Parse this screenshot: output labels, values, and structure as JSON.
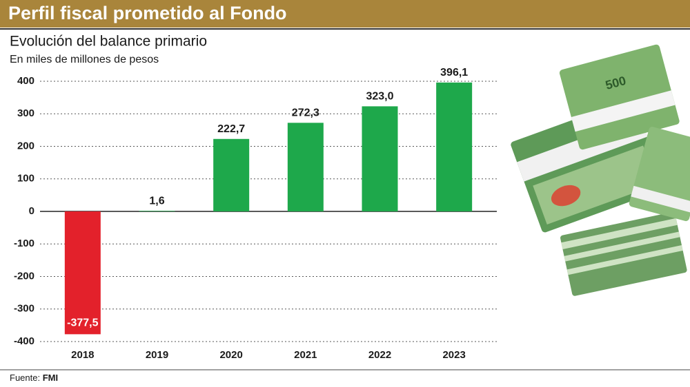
{
  "chart_data": {
    "type": "bar",
    "title": "Perfil fiscal prometido al Fondo",
    "subtitle": "Evolución del balance primario",
    "y_label": "En miles de millones de pesos",
    "categories": [
      "2018",
      "2019",
      "2020",
      "2021",
      "2022",
      "2023"
    ],
    "values": [
      -377.5,
      1.6,
      222.7,
      272.3,
      323.0,
      396.1
    ],
    "value_labels": [
      "-377,5",
      "1,6",
      "222,7",
      "272,3",
      "323,0",
      "396,1"
    ],
    "colors": [
      "#e3212b",
      "#1ea84b",
      "#1ea84b",
      "#1ea84b",
      "#1ea84b",
      "#1ea84b"
    ],
    "ylim": [
      -400,
      400
    ],
    "yticks": [
      400,
      300,
      200,
      100,
      0,
      -100,
      -200,
      -300,
      -400
    ],
    "grid": true,
    "source_label": "Fuente:",
    "source": "FMI"
  }
}
